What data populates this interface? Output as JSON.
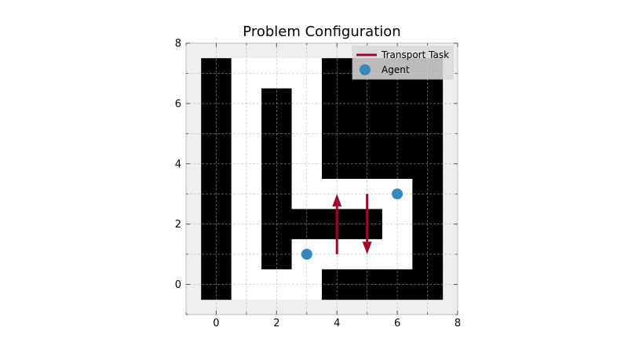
{
  "chart_data": {
    "type": "heatmap",
    "title": "Problem Configuration",
    "xlabel": "",
    "ylabel": "",
    "xlim": [
      -1,
      8
    ],
    "ylim": [
      -1,
      8
    ],
    "x_ticks": [
      0,
      2,
      4,
      6,
      8
    ],
    "y_ticks": [
      0,
      2,
      4,
      6,
      8
    ],
    "grid": true,
    "legend_position": "top-right",
    "legend": [
      {
        "label": "Transport Task",
        "kind": "line",
        "color": "#a60628"
      },
      {
        "label": "Agent",
        "kind": "marker",
        "color": "#348abd"
      }
    ],
    "grid_map": {
      "x_range": [
        0,
        7
      ],
      "y_range": [
        0,
        7
      ],
      "legend_note": "1 = obstacle (black), 0 = free (white)",
      "rows_top_to_bottom": [
        [
          1,
          0,
          0,
          0,
          1,
          1,
          1,
          1
        ],
        [
          1,
          0,
          1,
          0,
          1,
          1,
          1,
          1
        ],
        [
          1,
          0,
          1,
          0,
          1,
          1,
          1,
          1
        ],
        [
          1,
          0,
          1,
          0,
          1,
          1,
          1,
          1
        ],
        [
          1,
          0,
          1,
          0,
          0,
          0,
          0,
          1
        ],
        [
          1,
          0,
          1,
          1,
          1,
          1,
          0,
          1
        ],
        [
          1,
          0,
          1,
          0,
          0,
          0,
          0,
          1
        ],
        [
          1,
          0,
          0,
          0,
          1,
          1,
          1,
          1
        ]
      ]
    },
    "series": [
      {
        "name": "Transport Task",
        "type": "arrow",
        "color": "#a60628",
        "from": [
          4,
          1
        ],
        "to": [
          4,
          3
        ]
      },
      {
        "name": "Transport Task",
        "type": "arrow",
        "color": "#a60628",
        "from": [
          5,
          3
        ],
        "to": [
          5,
          1
        ]
      },
      {
        "name": "Agent",
        "type": "scatter",
        "color": "#348abd",
        "points": [
          [
            3,
            1
          ],
          [
            6,
            3
          ]
        ]
      }
    ],
    "colors": {
      "obstacle": "#000000",
      "free": "#ffffff",
      "axes_bg": "#eeeeee",
      "spine": "#bcbcbc",
      "gridline": "#b0b0b0"
    }
  }
}
